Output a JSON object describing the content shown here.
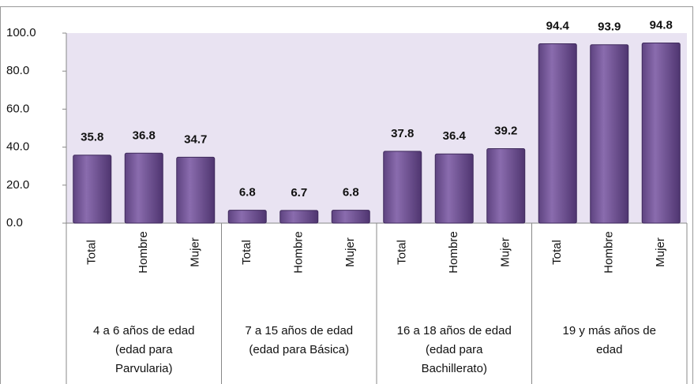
{
  "chart_data": {
    "type": "bar",
    "categories": [
      "Total",
      "Hombre",
      "Mujer",
      "Total",
      "Hombre",
      "Mujer",
      "Total",
      "Hombre",
      "Mujer",
      "Total",
      "Hombre",
      "Mujer"
    ],
    "values": [
      35.8,
      36.8,
      34.7,
      6.8,
      6.7,
      6.8,
      37.8,
      36.4,
      39.2,
      94.4,
      93.9,
      94.8
    ],
    "group_labels": [
      [
        "4 a 6 años de edad",
        "(edad para",
        "Parvularia)"
      ],
      [
        "7 a 15 años de edad",
        "(edad para Básica)"
      ],
      [
        "16 a 18 años de edad",
        "(edad para",
        "Bachillerato)"
      ],
      [
        "19  y más años de",
        "edad"
      ]
    ],
    "color": "#7a5c9c",
    "ylim": [
      0,
      100
    ],
    "yticks": [
      {
        "value": 0,
        "label": "0.0"
      },
      {
        "value": 20,
        "label": "20.0"
      },
      {
        "value": 40,
        "label": "40.0"
      },
      {
        "value": 60,
        "label": "60.0"
      },
      {
        "value": 80,
        "label": "80.0"
      },
      {
        "value": 100,
        "label": "100.0"
      }
    ]
  }
}
